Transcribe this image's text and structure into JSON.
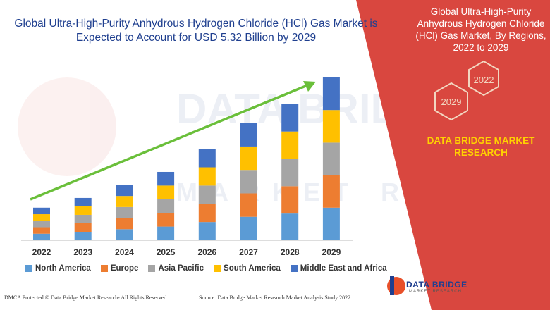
{
  "headline": "Global Ultra-High-Purity Anhydrous Hydrogen Chloride (HCl) Gas Market is Expected to Account for USD 5.32 Billion by 2029",
  "right_panel": {
    "title": "Global Ultra-High-Purity Anhydrous Hydrogen Chloride (HCl) Gas Market, By Regions, 2022 to 2029",
    "hex_badges": [
      "2022",
      "2029"
    ],
    "brand_text": "DATA BRIDGE MARKET RESEARCH"
  },
  "footer": {
    "left": "DMCA Protected © Data Bridge Market Research- All Rights Reserved.",
    "source": "Source: Data Bridge Market Research Market Analysis Study 2022"
  },
  "logo": {
    "name": "DATA BRIDGE",
    "tagline": "MARKET RESEARCH"
  },
  "watermark": {
    "line1": "DATA BRIDGE",
    "line2": "MARKET RESEARCH"
  },
  "colors": {
    "north_america": "#5b9bd5",
    "europe": "#ed7d31",
    "asia_pacific": "#a5a5a5",
    "south_america": "#ffc000",
    "mea": "#4472c4",
    "panel_red": "#d9473f",
    "headline_blue": "#1f3f8f",
    "trend_green": "#6abf3a"
  },
  "chart_data": {
    "type": "bar",
    "stacked": true,
    "categories": [
      "2022",
      "2023",
      "2024",
      "2025",
      "2026",
      "2027",
      "2028",
      "2029"
    ],
    "series": [
      {
        "name": "North America",
        "color": "#5b9bd5",
        "values": [
          1,
          1.3,
          1.7,
          2.1,
          2.8,
          3.6,
          4.1,
          5
        ]
      },
      {
        "name": "Europe",
        "color": "#ed7d31",
        "values": [
          1,
          1.3,
          1.7,
          2.1,
          2.8,
          3.6,
          4.2,
          5
        ]
      },
      {
        "name": "Asia Pacific",
        "color": "#a5a5a5",
        "values": [
          1,
          1.3,
          1.7,
          2.1,
          2.8,
          3.6,
          4.2,
          5
        ]
      },
      {
        "name": "South America",
        "color": "#ffc000",
        "values": [
          1,
          1.3,
          1.7,
          2.1,
          2.8,
          3.6,
          4.2,
          5
        ]
      },
      {
        "name": "Middle East and Africa",
        "color": "#4472c4",
        "values": [
          1,
          1.3,
          1.7,
          2.1,
          2.8,
          3.6,
          4.2,
          5
        ]
      }
    ],
    "ylim": [
      0,
      25
    ],
    "y_axis_visible": false,
    "trend_arrow": true,
    "legend_position": "bottom"
  }
}
